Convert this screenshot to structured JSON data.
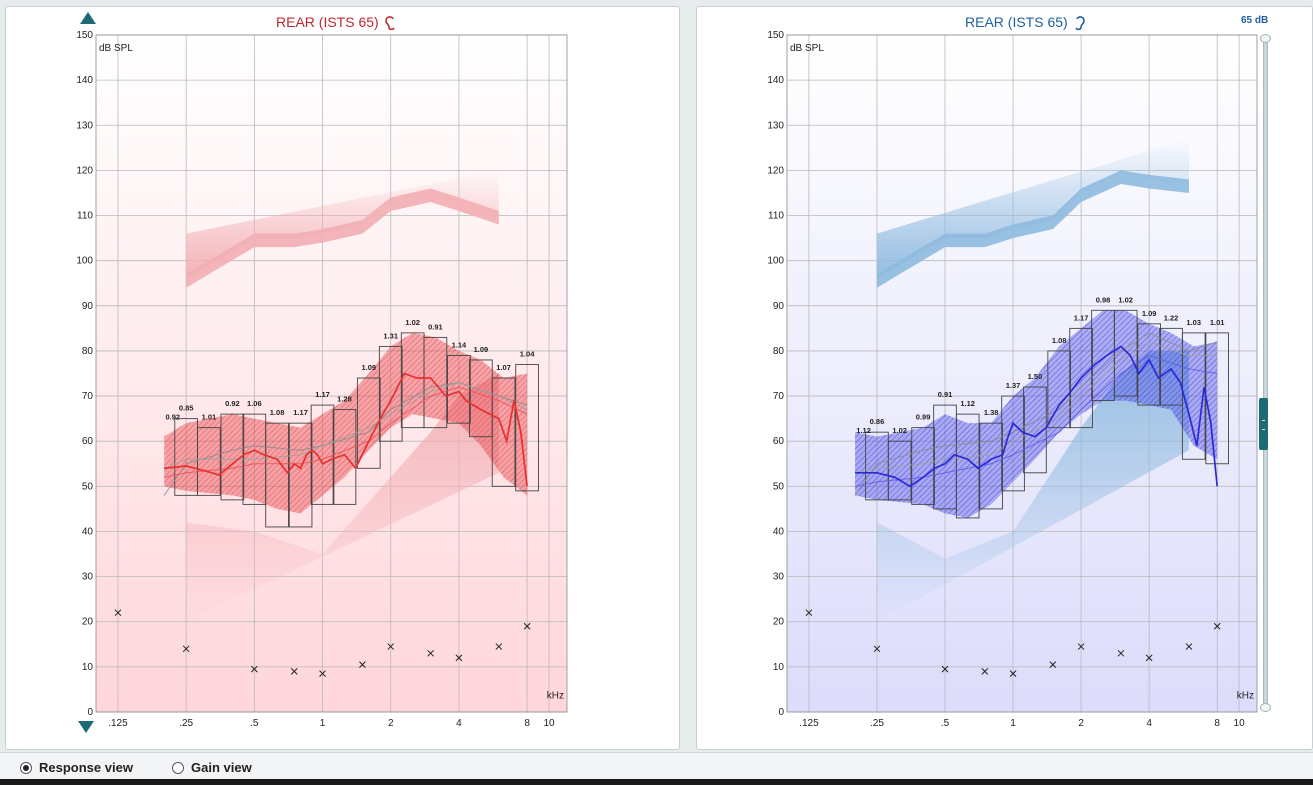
{
  "level_label": "65 dB",
  "views": {
    "response": "Response view",
    "gain": "Gain view",
    "selected": "response"
  },
  "chart_data": [
    {
      "type": "line",
      "side": "left",
      "title": "REAR (ISTS 65)",
      "ylabel": "dB SPL",
      "xlabel": "kHz",
      "ylim": [
        0,
        150
      ],
      "yticks": [
        0,
        10,
        20,
        30,
        40,
        50,
        60,
        70,
        80,
        90,
        100,
        110,
        120,
        130,
        140,
        150
      ],
      "xlim_khz": [
        0.1,
        12
      ],
      "xticks": [
        {
          "v": 0.125,
          "label": ".125"
        },
        {
          "v": 0.25,
          "label": ".25"
        },
        {
          "v": 0.5,
          "label": ".5"
        },
        {
          "v": 1,
          "label": "1"
        },
        {
          "v": 2,
          "label": "2"
        },
        {
          "v": 4,
          "label": "4"
        },
        {
          "v": 8,
          "label": "8"
        },
        {
          "v": 10,
          "label": "10"
        }
      ],
      "colors": {
        "main": "#e8312f",
        "fill": "#e84f57",
        "box": "#444444",
        "shade": "#f2aeb3",
        "bg_top": "#ffffff",
        "bg_bottom": "#ffd6db"
      },
      "ucl": [
        [
          0.25,
          96
        ],
        [
          0.5,
          105
        ],
        [
          0.75,
          105
        ],
        [
          1,
          106
        ],
        [
          1.5,
          108
        ],
        [
          2,
          113
        ],
        [
          3,
          115
        ],
        [
          4,
          113
        ],
        [
          6,
          110
        ]
      ],
      "threshold": [
        [
          0.25,
          42
        ],
        [
          0.5,
          40
        ],
        [
          1,
          35
        ],
        [
          2,
          52
        ],
        [
          3,
          62
        ],
        [
          4,
          70
        ],
        [
          6,
          75
        ]
      ],
      "bands": [
        {
          "f": 0.25,
          "lo": 48,
          "hi": 65,
          "ratio": "0.85"
        },
        {
          "f": 0.315,
          "lo": 48,
          "hi": 63,
          "ratio": "1.01"
        },
        {
          "f": 0.4,
          "lo": 47,
          "hi": 66,
          "ratio": "0.92"
        },
        {
          "f": 0.5,
          "lo": 46,
          "hi": 66,
          "ratio": "1.06"
        },
        {
          "f": 0.63,
          "lo": 41,
          "hi": 64,
          "ratio": "1.08"
        },
        {
          "f": 0.8,
          "lo": 41,
          "hi": 64,
          "ratio": "1.17"
        },
        {
          "f": 1,
          "lo": 46,
          "hi": 68,
          "ratio": "1.17"
        },
        {
          "f": 1.25,
          "lo": 46,
          "hi": 67,
          "ratio": "1.28"
        },
        {
          "f": 1.6,
          "lo": 54,
          "hi": 74,
          "ratio": "1.09"
        },
        {
          "f": 2,
          "lo": 60,
          "hi": 81,
          "ratio": "1.31"
        },
        {
          "f": 2.5,
          "lo": 63,
          "hi": 84,
          "ratio": "1.02"
        },
        {
          "f": 3.15,
          "lo": 63,
          "hi": 83,
          "ratio": "0.91"
        },
        {
          "f": 4,
          "lo": 64,
          "hi": 79,
          "ratio": "1.14"
        },
        {
          "f": 5,
          "lo": 61,
          "hi": 78,
          "ratio": "1.09"
        },
        {
          "f": 6.3,
          "lo": 50,
          "hi": 74,
          "ratio": "1.07"
        },
        {
          "f": 8,
          "lo": 49,
          "hi": 77,
          "ratio": "1.04"
        }
      ],
      "ratio_first": "0.92",
      "hatch_band": [
        [
          0.2,
          50,
          61
        ],
        [
          0.25,
          49,
          64
        ],
        [
          0.4,
          48,
          66
        ],
        [
          0.5,
          47,
          65
        ],
        [
          0.63,
          45,
          64
        ],
        [
          0.8,
          44,
          63
        ],
        [
          1,
          48,
          66
        ],
        [
          1.25,
          52,
          69
        ],
        [
          1.6,
          58,
          75
        ],
        [
          2,
          63,
          81
        ],
        [
          2.5,
          66,
          84
        ],
        [
          3.15,
          65,
          83
        ],
        [
          4,
          64,
          80
        ],
        [
          5,
          59,
          78
        ],
        [
          6.3,
          52,
          74
        ],
        [
          8,
          48,
          75
        ]
      ],
      "measured": [
        [
          0.2,
          54
        ],
        [
          0.25,
          54.5
        ],
        [
          0.3,
          53.5
        ],
        [
          0.35,
          52.5
        ],
        [
          0.4,
          55
        ],
        [
          0.45,
          57
        ],
        [
          0.5,
          58
        ],
        [
          0.55,
          57
        ],
        [
          0.63,
          56
        ],
        [
          0.7,
          53
        ],
        [
          0.75,
          55
        ],
        [
          0.8,
          54
        ],
        [
          0.85,
          57
        ],
        [
          0.9,
          58
        ],
        [
          0.95,
          57
        ],
        [
          1,
          55
        ],
        [
          1.1,
          56
        ],
        [
          1.25,
          57
        ],
        [
          1.4,
          54
        ],
        [
          1.6,
          60
        ],
        [
          1.8,
          65
        ],
        [
          2,
          69
        ],
        [
          2.3,
          75
        ],
        [
          2.6,
          74
        ],
        [
          3,
          74
        ],
        [
          3.5,
          70
        ],
        [
          4,
          71
        ],
        [
          4.3,
          69
        ],
        [
          5,
          67
        ],
        [
          6,
          65
        ],
        [
          6.5,
          60
        ],
        [
          7,
          69
        ],
        [
          7.5,
          62
        ],
        [
          8,
          50
        ]
      ],
      "target_lines": [
        [
          [
            0.2,
            48
          ],
          [
            0.25,
            55
          ],
          [
            0.4,
            58
          ],
          [
            0.5,
            59
          ],
          [
            0.8,
            58
          ],
          [
            1,
            59
          ],
          [
            1.6,
            62
          ],
          [
            2,
            67
          ],
          [
            3,
            72
          ],
          [
            4,
            73
          ],
          [
            6,
            70
          ],
          [
            8,
            68
          ]
        ],
        [
          [
            0.2,
            52
          ],
          [
            0.25,
            53
          ],
          [
            0.4,
            54
          ],
          [
            0.5,
            55
          ],
          [
            0.8,
            55
          ],
          [
            1,
            56
          ],
          [
            1.6,
            60
          ],
          [
            2,
            64
          ],
          [
            3,
            70
          ],
          [
            4,
            72
          ],
          [
            6,
            69
          ],
          [
            8,
            66
          ]
        ],
        [
          [
            0.2,
            54
          ],
          [
            0.25,
            56
          ],
          [
            0.4,
            56
          ],
          [
            0.5,
            56
          ],
          [
            0.8,
            57
          ],
          [
            1,
            59
          ],
          [
            1.6,
            63
          ],
          [
            2,
            66
          ],
          [
            3,
            71
          ],
          [
            4,
            73
          ],
          [
            6,
            70
          ],
          [
            8,
            67
          ]
        ]
      ],
      "thresholds_x": [
        [
          0.125,
          22
        ],
        [
          0.25,
          14
        ],
        [
          0.5,
          9.5
        ],
        [
          0.75,
          9
        ],
        [
          1,
          8.5
        ],
        [
          1.5,
          10.5
        ],
        [
          2,
          14.5
        ],
        [
          3,
          13
        ],
        [
          4,
          12
        ],
        [
          6,
          14.5
        ],
        [
          8,
          19
        ]
      ]
    },
    {
      "type": "line",
      "side": "right",
      "title": "REAR (ISTS 65)",
      "ylabel": "dB SPL",
      "xlabel": "kHz",
      "ylim": [
        0,
        150
      ],
      "yticks": [
        0,
        10,
        20,
        30,
        40,
        50,
        60,
        70,
        80,
        90,
        100,
        110,
        120,
        130,
        140,
        150
      ],
      "xlim_khz": [
        0.1,
        12
      ],
      "xticks": [
        {
          "v": 0.125,
          "label": ".125"
        },
        {
          "v": 0.25,
          "label": ".25"
        },
        {
          "v": 0.5,
          "label": ".5"
        },
        {
          "v": 1,
          "label": "1"
        },
        {
          "v": 2,
          "label": "2"
        },
        {
          "v": 4,
          "label": "4"
        },
        {
          "v": 8,
          "label": "8"
        },
        {
          "v": 10,
          "label": "10"
        }
      ],
      "colors": {
        "main": "#2a2ad6",
        "fill": "#5a5ae8",
        "box": "#444444",
        "shade": "#8ebadf",
        "bg_top": "#ffffff",
        "bg_bottom": "#dcdcfb"
      },
      "ucl": [
        [
          0.25,
          96
        ],
        [
          0.5,
          105
        ],
        [
          0.75,
          105
        ],
        [
          1,
          107
        ],
        [
          1.5,
          109
        ],
        [
          2,
          115
        ],
        [
          3,
          119
        ],
        [
          4,
          118
        ],
        [
          6,
          117
        ]
      ],
      "threshold": [
        [
          0.25,
          42
        ],
        [
          0.5,
          34
        ],
        [
          1,
          40
        ],
        [
          2,
          63
        ],
        [
          3,
          75
        ],
        [
          4,
          80
        ],
        [
          6,
          80
        ]
      ],
      "bands": [
        {
          "f": 0.25,
          "lo": 47,
          "hi": 62,
          "ratio": "0.86"
        },
        {
          "f": 0.315,
          "lo": 47,
          "hi": 60,
          "ratio": "1.02"
        },
        {
          "f": 0.4,
          "lo": 46,
          "hi": 63,
          "ratio": "0.99"
        },
        {
          "f": 0.5,
          "lo": 45,
          "hi": 68,
          "ratio": "0.91"
        },
        {
          "f": 0.63,
          "lo": 43,
          "hi": 66,
          "ratio": "1.12"
        },
        {
          "f": 0.8,
          "lo": 45,
          "hi": 64,
          "ratio": "1.38"
        },
        {
          "f": 1,
          "lo": 49,
          "hi": 70,
          "ratio": "1.37"
        },
        {
          "f": 1.25,
          "lo": 53,
          "hi": 72,
          "ratio": "1.50"
        },
        {
          "f": 1.6,
          "lo": 63,
          "hi": 80,
          "ratio": "1.08"
        },
        {
          "f": 2,
          "lo": 63,
          "hi": 85,
          "ratio": "1.17"
        },
        {
          "f": 2.5,
          "lo": 69,
          "hi": 89,
          "ratio": "0.98"
        },
        {
          "f": 3.15,
          "lo": 70,
          "hi": 89,
          "ratio": "1.02"
        },
        {
          "f": 4,
          "lo": 68,
          "hi": 86,
          "ratio": "1.09"
        },
        {
          "f": 5,
          "lo": 68,
          "hi": 85,
          "ratio": "1.22"
        },
        {
          "f": 6.3,
          "lo": 56,
          "hi": 84,
          "ratio": "1.03"
        },
        {
          "f": 8,
          "lo": 55,
          "hi": 84,
          "ratio": "1.01"
        }
      ],
      "ratio_first": "1.12",
      "hatch_band": [
        [
          0.2,
          48,
          62
        ],
        [
          0.25,
          47,
          61
        ],
        [
          0.4,
          46,
          63
        ],
        [
          0.5,
          44,
          66
        ],
        [
          0.63,
          43,
          64
        ],
        [
          0.8,
          46,
          64
        ],
        [
          1,
          51,
          70
        ],
        [
          1.25,
          56,
          74
        ],
        [
          1.6,
          62,
          81
        ],
        [
          2,
          66,
          85
        ],
        [
          2.5,
          69,
          89
        ],
        [
          3.15,
          69,
          89
        ],
        [
          4,
          68,
          86
        ],
        [
          5,
          67,
          84
        ],
        [
          6.3,
          59,
          81
        ],
        [
          8,
          56,
          82
        ]
      ],
      "measured": [
        [
          0.2,
          53
        ],
        [
          0.25,
          53
        ],
        [
          0.3,
          52
        ],
        [
          0.35,
          50
        ],
        [
          0.4,
          52
        ],
        [
          0.45,
          54
        ],
        [
          0.5,
          55
        ],
        [
          0.55,
          57
        ],
        [
          0.63,
          56
        ],
        [
          0.7,
          54
        ],
        [
          0.8,
          56
        ],
        [
          0.9,
          57
        ],
        [
          0.95,
          61
        ],
        [
          1,
          64
        ],
        [
          1.1,
          62
        ],
        [
          1.25,
          61
        ],
        [
          1.4,
          63
        ],
        [
          1.6,
          68
        ],
        [
          1.8,
          71
        ],
        [
          2,
          74
        ],
        [
          2.3,
          77
        ],
        [
          2.6,
          79
        ],
        [
          3,
          81
        ],
        [
          3.3,
          79
        ],
        [
          3.6,
          75
        ],
        [
          4,
          78
        ],
        [
          4.4,
          74
        ],
        [
          5,
          76
        ],
        [
          5.5,
          73
        ],
        [
          6,
          66
        ],
        [
          6.5,
          59
        ],
        [
          7,
          72
        ],
        [
          7.5,
          64
        ],
        [
          8,
          50
        ]
      ],
      "target_lines": [
        [
          [
            0.2,
            48
          ],
          [
            0.25,
            55
          ],
          [
            0.4,
            58
          ],
          [
            0.5,
            59
          ],
          [
            0.8,
            60
          ],
          [
            1,
            62
          ],
          [
            1.6,
            67
          ],
          [
            2,
            72
          ],
          [
            3,
            80
          ],
          [
            4,
            84
          ],
          [
            6,
            80
          ],
          [
            8,
            82
          ]
        ],
        [
          [
            0.2,
            50
          ],
          [
            0.25,
            51
          ],
          [
            0.4,
            52
          ],
          [
            0.5,
            53
          ],
          [
            0.8,
            55
          ],
          [
            1,
            57
          ],
          [
            1.6,
            62
          ],
          [
            2,
            67
          ],
          [
            3,
            75
          ],
          [
            4,
            79
          ],
          [
            6,
            76
          ],
          [
            8,
            75
          ]
        ],
        [
          [
            0.2,
            53
          ],
          [
            0.25,
            54
          ],
          [
            0.4,
            55
          ],
          [
            0.5,
            56
          ],
          [
            0.8,
            57
          ],
          [
            1,
            60
          ],
          [
            1.6,
            65
          ],
          [
            2,
            70
          ],
          [
            3,
            78
          ],
          [
            4,
            82
          ],
          [
            6,
            79
          ],
          [
            8,
            79
          ]
        ]
      ],
      "thresholds_x": [
        [
          0.125,
          22
        ],
        [
          0.25,
          14
        ],
        [
          0.5,
          9.5
        ],
        [
          0.75,
          9
        ],
        [
          1,
          8.5
        ],
        [
          1.5,
          10.5
        ],
        [
          2,
          14.5
        ],
        [
          3,
          13
        ],
        [
          4,
          12
        ],
        [
          6,
          14.5
        ],
        [
          8,
          19
        ]
      ]
    }
  ]
}
